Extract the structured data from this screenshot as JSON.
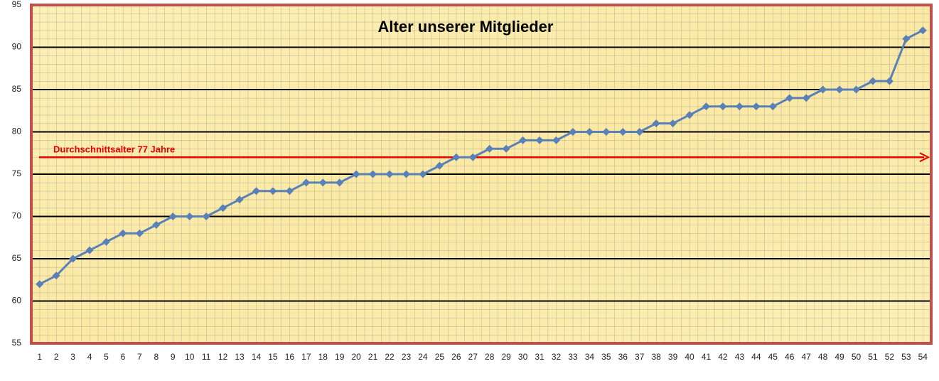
{
  "chart_data": {
    "type": "line",
    "title": "Alter unserer Mitglieder",
    "categories": [
      1,
      2,
      3,
      4,
      5,
      6,
      7,
      8,
      9,
      10,
      11,
      12,
      13,
      14,
      15,
      16,
      17,
      18,
      19,
      20,
      21,
      22,
      23,
      24,
      25,
      26,
      27,
      28,
      29,
      30,
      31,
      32,
      33,
      34,
      35,
      36,
      37,
      38,
      39,
      40,
      41,
      42,
      43,
      44,
      45,
      46,
      47,
      48,
      49,
      50,
      51,
      52,
      53,
      54
    ],
    "values": [
      62,
      63,
      65,
      66,
      67,
      68,
      68,
      69,
      70,
      70,
      70,
      71,
      72,
      73,
      73,
      73,
      74,
      74,
      74,
      75,
      75,
      75,
      75,
      75,
      76,
      77,
      77,
      78,
      78,
      79,
      79,
      79,
      80,
      80,
      80,
      80,
      80,
      81,
      81,
      82,
      83,
      83,
      83,
      83,
      83,
      84,
      84,
      85,
      85,
      85,
      86,
      86,
      91,
      92
    ],
    "color": "#5a80b8",
    "ylim": [
      55,
      95
    ],
    "yticks": [
      55,
      60,
      65,
      70,
      75,
      80,
      85,
      90,
      95
    ],
    "grid": true,
    "reference_line": {
      "value": 77,
      "label": "Durchschnittsalter  77 Jahre",
      "color": "#e60000"
    }
  }
}
